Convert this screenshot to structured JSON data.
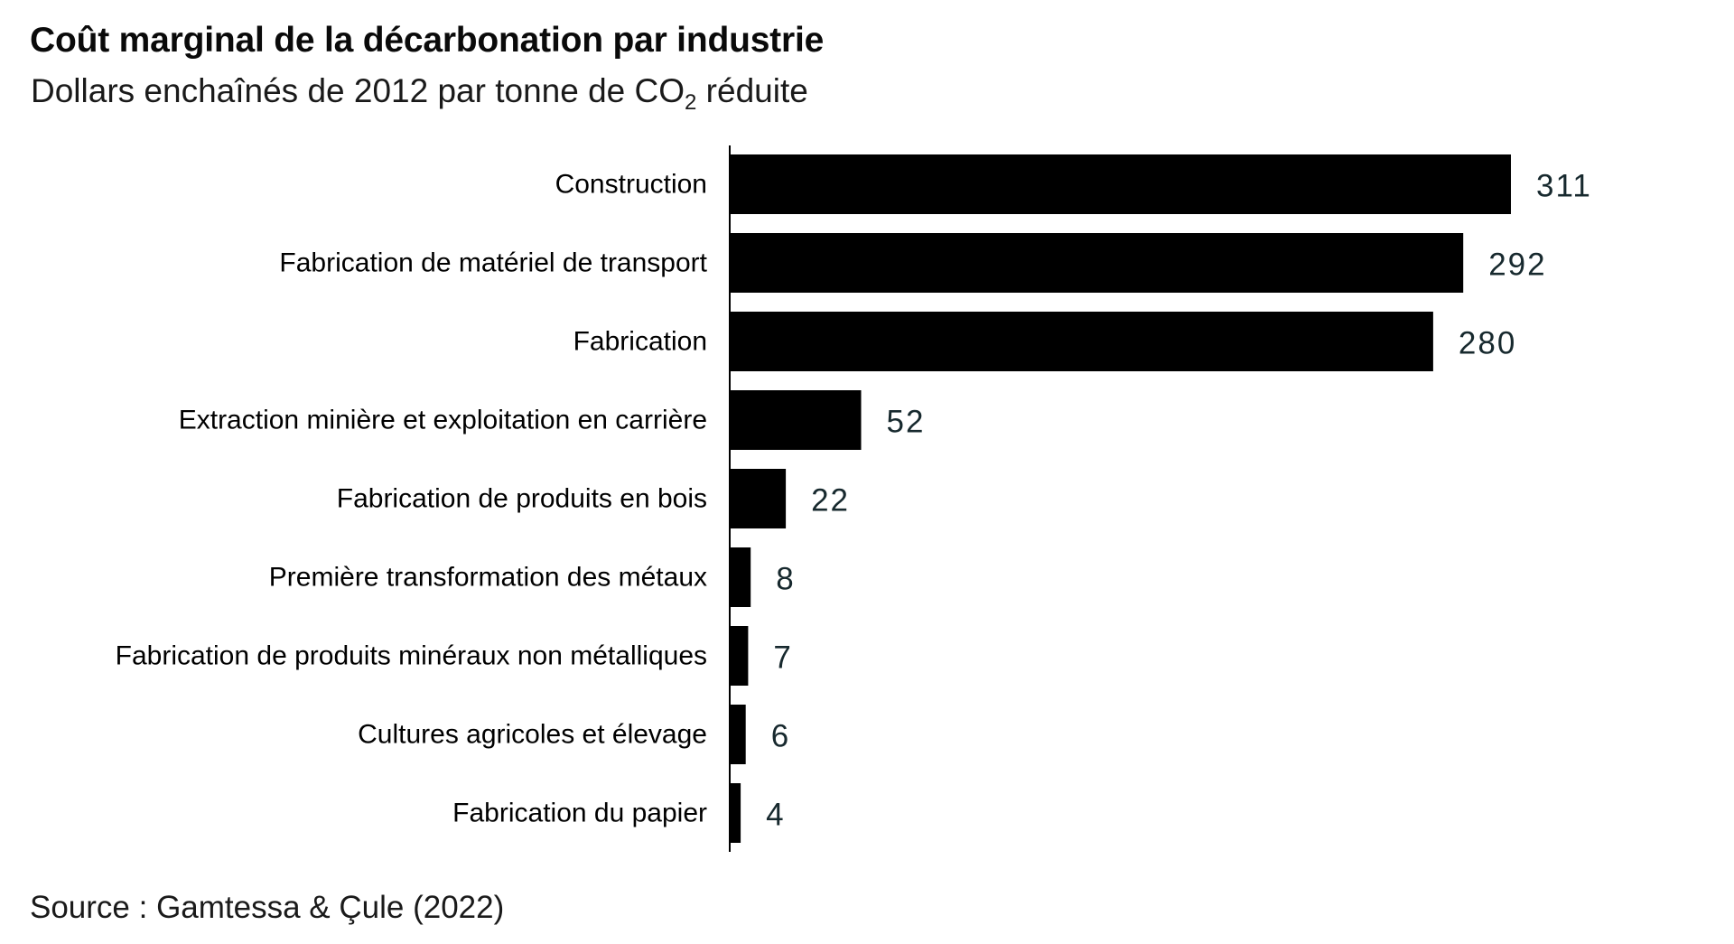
{
  "header": {
    "title": "Coût marginal de la décarbonation par industrie",
    "subtitle_prefix": "Dollars enchaînés de 2012 par tonne de CO",
    "subtitle_subscript": "2",
    "subtitle_suffix": " réduite"
  },
  "footer": {
    "source": "Source : Gamtessa & Çule (2022)"
  },
  "colors": {
    "bar": "#000000",
    "value_label": "#17292e",
    "category_label": "#000000",
    "axis": "#000000"
  },
  "chart_data": {
    "type": "bar",
    "orientation": "horizontal",
    "title": "Coût marginal de la décarbonation par industrie",
    "subtitle": "Dollars enchaînés de 2012 par tonne de CO2 réduite",
    "xlabel": "",
    "ylabel": "",
    "xlim": [
      0,
      311
    ],
    "grid": false,
    "legend": "none",
    "categories": [
      "Construction",
      "Fabrication de matériel de transport",
      "Fabrication",
      "Extraction minière et exploitation en carrière",
      "Fabrication de produits en bois",
      "Première transformation des métaux",
      "Fabrication de produits minéraux non métalliques",
      "Cultures agricoles et élevage",
      "Fabrication du papier"
    ],
    "values": [
      311,
      292,
      280,
      52,
      22,
      8,
      7,
      6,
      4
    ],
    "data_labels": [
      "311",
      "292",
      "280",
      "52",
      "22",
      "8",
      "7",
      "6",
      "4"
    ]
  }
}
